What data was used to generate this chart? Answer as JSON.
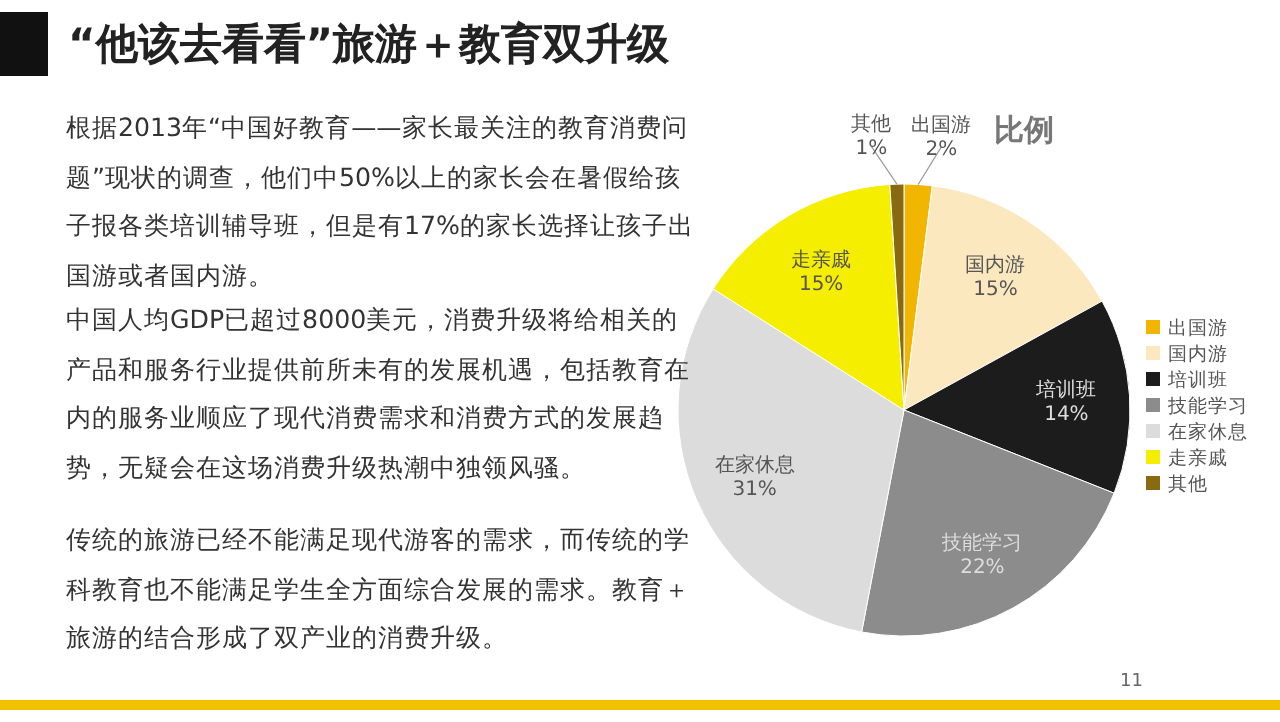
{
  "chart_data": {
    "type": "pie",
    "title": "“他该去看看”旅游＋教育双升级",
    "subtitle": "比例",
    "categories": [
      "出国游",
      "国内游",
      "培训班",
      "技能学习",
      "在家休息",
      "走亲戚",
      "其他"
    ],
    "values": [
      2,
      15,
      14,
      22,
      31,
      15,
      1
    ],
    "colors": [
      "#f2b600",
      "#fbe8bf",
      "#1c1c1c",
      "#8c8c8c",
      "#dcdcdc",
      "#f6ee00",
      "#8a6a10"
    ],
    "value_labels": [
      "2%",
      "15%",
      "14%",
      "22%",
      "31%",
      "15%",
      "1%"
    ],
    "legend": "right",
    "annotations": [
      "根据2013年“中国好教育——家长最关注的教育消费问题”现状的调查，他们中50%以上的家长会在暑假给孩子报各类培训辅导班，但是有17%的家长选择让孩子出国游或者国内游。",
      "中国人均GDP已超过8000美元，消费升级将给相关的产品和服务行业提供前所未有的发展机遇，包括教育在内的服务业顺应了现代消费需求和消费方式的发展趋势，无疑会在这场消费升级热潮中独领风骚。",
      "传统的旅游已经不能满足现代游客的需求，而传统的学科教育也不能满足学生全方面综合发展的需求。教育＋旅游的结合形成了双产业的消费升级。",
      "11"
    ]
  }
}
